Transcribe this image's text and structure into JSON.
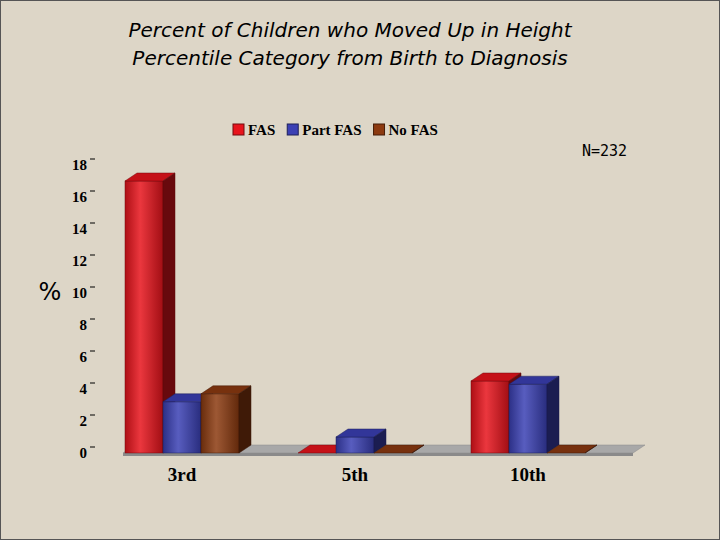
{
  "chart_data": {
    "type": "bar",
    "title": "Percent of Children who Moved Up in Height Percentile Category from Birth to Diagnosis",
    "annotation": "N=232",
    "y_label": "%",
    "categories": [
      "3rd",
      "5th",
      "10th"
    ],
    "series": [
      {
        "name": "FAS",
        "color": "#e8141c",
        "values": [
          17,
          0,
          4.5
        ]
      },
      {
        "name": "Part FAS",
        "color": "#3b40b4",
        "values": [
          3.2,
          1,
          4.3
        ]
      },
      {
        "name": "No FAS",
        "color": "#8c3a10",
        "values": [
          3.7,
          0,
          0
        ]
      }
    ],
    "ylim": [
      0,
      18
    ],
    "yticks": [
      0,
      2,
      4,
      6,
      8,
      10,
      12,
      14,
      16,
      18
    ],
    "legend": "top",
    "grid": false
  }
}
